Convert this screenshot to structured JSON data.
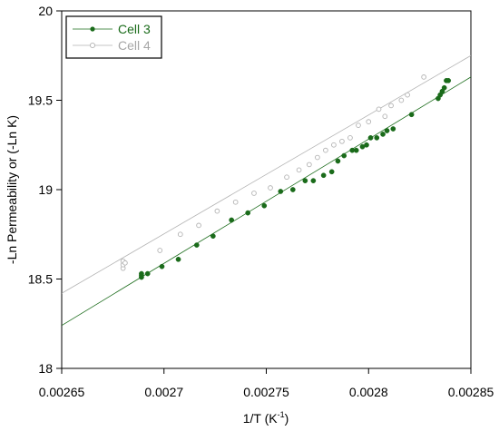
{
  "chart_data": {
    "type": "scatter",
    "xlabel": "1/T (K",
    "xlabel_sup": "-1",
    "xlabel_tail": ")",
    "ylabel": "-Ln Permeability  or  (-Ln K)",
    "xlim": [
      0.00265,
      0.00285
    ],
    "ylim": [
      18,
      20
    ],
    "xticks": [
      "0.00265",
      "0.0027",
      "0.00275",
      "0.0028",
      "0.00285"
    ],
    "yticks": [
      "18",
      "18.5",
      "19",
      "19.5",
      "20"
    ],
    "grid": false,
    "legend_position": "top-left",
    "series": [
      {
        "name": "Cell 3",
        "color": "#1a6b1a",
        "marker": "filled-circle",
        "fit": [
          [
            0.00265,
            18.24
          ],
          [
            0.00285,
            19.63
          ]
        ],
        "points": [
          [
            0.002689,
            18.51
          ],
          [
            0.002689,
            18.52
          ],
          [
            0.002689,
            18.53
          ],
          [
            0.002692,
            18.53
          ],
          [
            0.002699,
            18.57
          ],
          [
            0.002707,
            18.61
          ],
          [
            0.002716,
            18.69
          ],
          [
            0.002724,
            18.74
          ],
          [
            0.002733,
            18.83
          ],
          [
            0.002741,
            18.87
          ],
          [
            0.002749,
            18.91
          ],
          [
            0.002757,
            18.99
          ],
          [
            0.002763,
            19.0
          ],
          [
            0.002769,
            19.05
          ],
          [
            0.002773,
            19.05
          ],
          [
            0.002778,
            19.08
          ],
          [
            0.002782,
            19.1
          ],
          [
            0.002785,
            19.16
          ],
          [
            0.002788,
            19.19
          ],
          [
            0.002792,
            19.22
          ],
          [
            0.002794,
            19.22
          ],
          [
            0.002797,
            19.24
          ],
          [
            0.002799,
            19.25
          ],
          [
            0.002801,
            19.29
          ],
          [
            0.002804,
            19.29
          ],
          [
            0.002807,
            19.31
          ],
          [
            0.002809,
            19.33
          ],
          [
            0.002812,
            19.34
          ],
          [
            0.002821,
            19.42
          ],
          [
            0.002834,
            19.51
          ],
          [
            0.002835,
            19.53
          ],
          [
            0.002836,
            19.55
          ],
          [
            0.002837,
            19.57
          ],
          [
            0.002838,
            19.61
          ],
          [
            0.002839,
            19.61
          ]
        ]
      },
      {
        "name": "Cell 4",
        "color": "#b3b3b3",
        "marker": "open-circle",
        "fit": [
          [
            0.00265,
            18.42
          ],
          [
            0.00285,
            19.75
          ]
        ],
        "points": [
          [
            0.00268,
            18.56
          ],
          [
            0.00268,
            18.58
          ],
          [
            0.00268,
            18.6
          ],
          [
            0.002681,
            18.59
          ],
          [
            0.002698,
            18.66
          ],
          [
            0.002708,
            18.75
          ],
          [
            0.002717,
            18.8
          ],
          [
            0.002726,
            18.88
          ],
          [
            0.002735,
            18.93
          ],
          [
            0.002744,
            18.98
          ],
          [
            0.002752,
            19.01
          ],
          [
            0.00276,
            19.07
          ],
          [
            0.002766,
            19.11
          ],
          [
            0.002771,
            19.14
          ],
          [
            0.002775,
            19.18
          ],
          [
            0.002779,
            19.22
          ],
          [
            0.002783,
            19.25
          ],
          [
            0.002787,
            19.27
          ],
          [
            0.002791,
            19.29
          ],
          [
            0.002795,
            19.36
          ],
          [
            0.0028,
            19.38
          ],
          [
            0.002805,
            19.45
          ],
          [
            0.002808,
            19.41
          ],
          [
            0.002811,
            19.47
          ],
          [
            0.002816,
            19.5
          ],
          [
            0.002819,
            19.53
          ],
          [
            0.002827,
            19.63
          ]
        ]
      }
    ]
  }
}
